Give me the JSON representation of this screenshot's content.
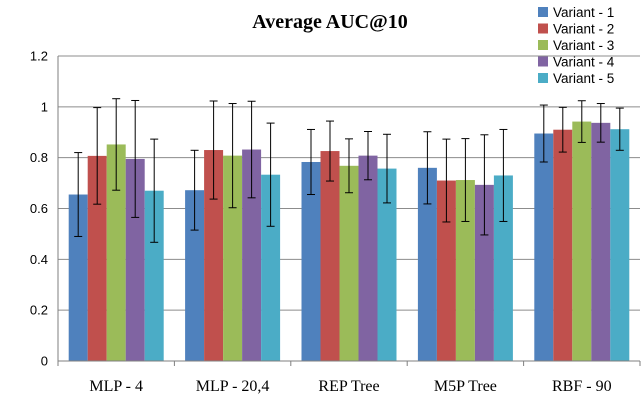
{
  "chart_data": {
    "type": "bar",
    "title": "Average AUC@10",
    "xlabel": "",
    "ylabel": "",
    "ylim": [
      0,
      1.2
    ],
    "yticks": [
      "0",
      "0.2",
      "0.4",
      "0.6",
      "0.8",
      "1",
      "1.2"
    ],
    "grid": true,
    "legend_position": "top-right",
    "categories": [
      "MLP - 4",
      "MLP - 20,4",
      "REP Tree",
      "M5P Tree",
      "RBF - 90"
    ],
    "series": [
      {
        "name": "Variant - 1",
        "color": "#4f81bd",
        "values": [
          0.655,
          0.672,
          0.783,
          0.76,
          0.895
        ],
        "errors": [
          0.165,
          0.157,
          0.128,
          0.142,
          0.112
        ]
      },
      {
        "name": "Variant - 2",
        "color": "#c0504d",
        "values": [
          0.807,
          0.83,
          0.826,
          0.71,
          0.91
        ],
        "errors": [
          0.19,
          0.193,
          0.118,
          0.163,
          0.088
        ]
      },
      {
        "name": "Variant - 3",
        "color": "#9bbb59",
        "values": [
          0.852,
          0.808,
          0.768,
          0.712,
          0.942
        ],
        "errors": [
          0.18,
          0.205,
          0.106,
          0.163,
          0.082
        ]
      },
      {
        "name": "Variant - 4",
        "color": "#8064a2",
        "values": [
          0.795,
          0.832,
          0.808,
          0.693,
          0.937
        ],
        "errors": [
          0.23,
          0.19,
          0.095,
          0.197,
          0.076
        ]
      },
      {
        "name": "Variant - 5",
        "color": "#4bacc6",
        "values": [
          0.67,
          0.733,
          0.757,
          0.73,
          0.912
        ],
        "errors": [
          0.203,
          0.203,
          0.135,
          0.181,
          0.083
        ]
      }
    ]
  }
}
